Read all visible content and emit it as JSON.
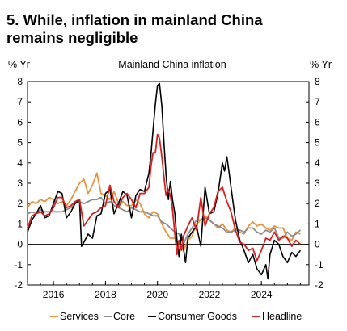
{
  "title_line1": "5. While, inflation in mainland China",
  "title_line2": "remains negligible",
  "chart_data": {
    "type": "line",
    "title": "Mainland China inflation",
    "ylabel_left": "% Yr",
    "ylabel_right": "% Yr",
    "ylim": [
      -2,
      8
    ],
    "yticks": [
      "8",
      "7",
      "6",
      "5",
      "4",
      "3",
      "2",
      "1",
      "0",
      "-1",
      "-2"
    ],
    "xlim": [
      2015.0,
      2025.83
    ],
    "xticks": [
      "2016",
      "2018",
      "2020",
      "2022",
      "2024"
    ],
    "grid": false,
    "legend_position": "bottom",
    "series": [
      {
        "name": "Services",
        "color": "#e8923c",
        "x": [
          2015.0,
          2015.17,
          2015.33,
          2015.5,
          2015.67,
          2015.83,
          2016.0,
          2016.17,
          2016.33,
          2016.5,
          2016.67,
          2016.83,
          2017.0,
          2017.17,
          2017.33,
          2017.5,
          2017.67,
          2017.83,
          2018.0,
          2018.17,
          2018.33,
          2018.5,
          2018.67,
          2018.83,
          2019.0,
          2019.17,
          2019.33,
          2019.5,
          2019.67,
          2019.83,
          2020.0,
          2020.17,
          2020.33,
          2020.5,
          2020.67,
          2020.83,
          2021.0,
          2021.17,
          2021.33,
          2021.5,
          2021.67,
          2021.83,
          2022.0,
          2022.17,
          2022.33,
          2022.5,
          2022.67,
          2022.83,
          2023.0,
          2023.17,
          2023.33,
          2023.5,
          2023.67,
          2023.83,
          2024.0,
          2024.17,
          2024.33,
          2024.5,
          2024.67,
          2024.83,
          2025.0,
          2025.17,
          2025.33,
          2025.5
        ],
        "values": [
          1.8,
          2.1,
          2.0,
          2.2,
          2.1,
          2.3,
          2.2,
          2.0,
          2.1,
          1.9,
          2.2,
          2.6,
          3.0,
          3.2,
          2.5,
          2.9,
          3.5,
          2.5,
          2.4,
          2.2,
          2.6,
          2.0,
          2.1,
          1.9,
          1.9,
          2.2,
          2.0,
          1.5,
          1.3,
          1.6,
          1.5,
          1.0,
          0.6,
          0.3,
          0.3,
          0.0,
          -0.3,
          0.2,
          0.4,
          1.0,
          1.2,
          1.4,
          1.2,
          1.0,
          0.8,
          1.0,
          0.7,
          0.6,
          0.8,
          0.6,
          0.5,
          0.9,
          1.1,
          0.9,
          1.0,
          0.8,
          0.7,
          0.9,
          0.8,
          0.8,
          0.3,
          0.2,
          0.6,
          0.5
        ]
      },
      {
        "name": "Core",
        "color": "#8c8c8c",
        "x": [
          2015.0,
          2015.17,
          2015.33,
          2015.5,
          2015.67,
          2015.83,
          2016.0,
          2016.17,
          2016.33,
          2016.5,
          2016.67,
          2016.83,
          2017.0,
          2017.17,
          2017.33,
          2017.5,
          2017.67,
          2017.83,
          2018.0,
          2018.17,
          2018.33,
          2018.5,
          2018.67,
          2018.83,
          2019.0,
          2019.17,
          2019.33,
          2019.5,
          2019.67,
          2019.83,
          2020.0,
          2020.17,
          2020.33,
          2020.5,
          2020.67,
          2020.83,
          2021.0,
          2021.17,
          2021.33,
          2021.5,
          2021.67,
          2021.83,
          2022.0,
          2022.17,
          2022.33,
          2022.5,
          2022.67,
          2022.83,
          2023.0,
          2023.17,
          2023.33,
          2023.5,
          2023.67,
          2023.83,
          2024.0,
          2024.17,
          2024.33,
          2024.5,
          2024.67,
          2024.83,
          2025.0,
          2025.17,
          2025.33,
          2025.5
        ],
        "values": [
          1.5,
          1.6,
          1.5,
          1.7,
          1.6,
          1.6,
          1.6,
          1.6,
          1.6,
          1.7,
          1.8,
          2.0,
          2.1,
          2.0,
          2.1,
          2.2,
          2.2,
          2.3,
          2.0,
          2.1,
          1.9,
          1.8,
          1.7,
          1.6,
          1.8,
          1.7,
          1.6,
          1.6,
          1.5,
          1.4,
          1.4,
          1.1,
          1.0,
          0.8,
          0.6,
          0.5,
          0.0,
          0.5,
          0.8,
          1.2,
          1.2,
          1.3,
          1.2,
          1.0,
          0.9,
          0.8,
          0.6,
          0.6,
          0.7,
          0.7,
          0.6,
          0.8,
          0.8,
          0.6,
          0.5,
          0.7,
          0.6,
          0.8,
          0.3,
          0.3,
          0.6,
          0.4,
          0.5,
          0.7
        ]
      },
      {
        "name": "Consumer Goods",
        "color": "#000000",
        "x": [
          2015.0,
          2015.17,
          2015.33,
          2015.5,
          2015.67,
          2015.83,
          2016.0,
          2016.17,
          2016.33,
          2016.5,
          2016.67,
          2016.83,
          2017.0,
          2017.08,
          2017.17,
          2017.33,
          2017.5,
          2017.67,
          2017.83,
          2018.0,
          2018.17,
          2018.33,
          2018.5,
          2018.67,
          2018.83,
          2019.0,
          2019.17,
          2019.33,
          2019.5,
          2019.67,
          2019.75,
          2019.83,
          2019.92,
          2020.0,
          2020.08,
          2020.17,
          2020.25,
          2020.33,
          2020.42,
          2020.5,
          2020.58,
          2020.67,
          2020.75,
          2020.83,
          2020.92,
          2021.0,
          2021.08,
          2021.17,
          2021.33,
          2021.5,
          2021.67,
          2021.83,
          2022.0,
          2022.17,
          2022.33,
          2022.5,
          2022.58,
          2022.67,
          2022.75,
          2022.83,
          2023.0,
          2023.17,
          2023.33,
          2023.5,
          2023.67,
          2023.83,
          2024.0,
          2024.17,
          2024.25,
          2024.33,
          2024.5,
          2024.67,
          2024.83,
          2025.0,
          2025.17,
          2025.33,
          2025.5
        ],
        "values": [
          0.6,
          1.2,
          1.5,
          1.9,
          1.3,
          1.4,
          2.0,
          2.6,
          2.5,
          1.3,
          1.6,
          2.0,
          2.2,
          -0.1,
          0.1,
          0.5,
          0.3,
          1.4,
          1.5,
          2.5,
          2.7,
          1.5,
          2.0,
          2.6,
          2.4,
          1.3,
          2.4,
          2.7,
          2.6,
          3.5,
          4.4,
          5.6,
          6.9,
          7.8,
          7.9,
          6.8,
          5.0,
          3.4,
          2.2,
          3.1,
          2.2,
          1.5,
          0.2,
          -0.6,
          0.5,
          -0.2,
          -0.9,
          0.3,
          0.6,
          0.9,
          -0.1,
          2.8,
          1.5,
          1.6,
          2.5,
          4.0,
          3.6,
          4.3,
          3.6,
          2.8,
          1.2,
          0.2,
          -0.3,
          -0.9,
          -0.5,
          -1.2,
          -1.5,
          -1.0,
          -1.7,
          -0.5,
          0.2,
          0.0,
          -0.6,
          -0.9,
          -0.4,
          -0.6,
          -0.3
        ]
      },
      {
        "name": "Headline",
        "color": "#d62020",
        "x": [
          2015.0,
          2015.17,
          2015.33,
          2015.5,
          2015.67,
          2015.83,
          2016.0,
          2016.17,
          2016.33,
          2016.5,
          2016.67,
          2016.83,
          2017.0,
          2017.17,
          2017.33,
          2017.5,
          2017.67,
          2017.83,
          2018.0,
          2018.17,
          2018.33,
          2018.5,
          2018.67,
          2018.83,
          2019.0,
          2019.17,
          2019.33,
          2019.5,
          2019.67,
          2019.75,
          2019.83,
          2019.92,
          2020.0,
          2020.08,
          2020.17,
          2020.25,
          2020.33,
          2020.42,
          2020.5,
          2020.58,
          2020.67,
          2020.75,
          2020.83,
          2020.92,
          2021.0,
          2021.17,
          2021.33,
          2021.5,
          2021.67,
          2021.83,
          2022.0,
          2022.17,
          2022.33,
          2022.5,
          2022.67,
          2022.83,
          2023.0,
          2023.17,
          2023.33,
          2023.5,
          2023.67,
          2023.83,
          2024.0,
          2024.17,
          2024.33,
          2024.5,
          2024.67,
          2024.83,
          2025.0,
          2025.17,
          2025.33,
          2025.5
        ],
        "values": [
          0.8,
          1.4,
          1.5,
          1.6,
          1.4,
          1.5,
          1.8,
          2.3,
          2.3,
          1.8,
          1.9,
          2.1,
          2.2,
          0.9,
          1.2,
          1.5,
          1.6,
          1.8,
          1.9,
          2.9,
          2.1,
          1.8,
          2.3,
          2.5,
          2.2,
          1.8,
          2.5,
          2.5,
          2.8,
          3.8,
          4.5,
          4.5,
          5.4,
          5.2,
          4.3,
          3.3,
          2.4,
          2.7,
          2.4,
          1.7,
          0.5,
          -0.5,
          0.2,
          -0.3,
          0.4,
          0.9,
          1.3,
          0.7,
          2.3,
          0.9,
          1.5,
          1.8,
          2.6,
          2.8,
          2.1,
          1.6,
          0.7,
          0.1,
          0.0,
          -0.3,
          -0.2,
          -0.8,
          -0.3,
          0.3,
          0.2,
          0.6,
          0.2,
          0.4,
          0.3,
          -0.1,
          0.2,
          0.0
        ]
      }
    ]
  }
}
